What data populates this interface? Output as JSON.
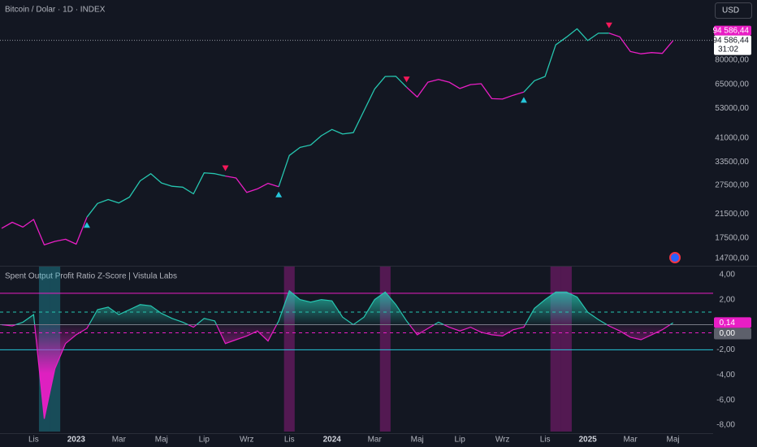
{
  "chart_data": [
    {
      "type": "line",
      "title": "Bitcoin / Dolar · 1D · INDEX",
      "log_scale": true,
      "grid": false,
      "currency": "USD",
      "countdown": "31:02",
      "current": {
        "value": 94586.44,
        "label": "94 586,44"
      },
      "current_color": "#e91ec5",
      "ylim": [
        13800,
        133500
      ],
      "yticks": [
        {
          "value": 80000,
          "label": "80000,00"
        },
        {
          "value": 65000,
          "label": "65000,00"
        },
        {
          "value": 53000,
          "label": "53000,00"
        },
        {
          "value": 41000,
          "label": "41000,00"
        },
        {
          "value": 33500,
          "label": "33500,00"
        },
        {
          "value": 27500,
          "label": "27500,00"
        },
        {
          "value": 21500,
          "label": "21500,00"
        },
        {
          "value": 17500,
          "label": "17500,00"
        },
        {
          "value": 14700,
          "label": "14700,00"
        }
      ],
      "series": [
        {
          "color": "#26c6b0",
          "signal_color": "#26c6da",
          "values": [
            null,
            null,
            null,
            null,
            null,
            null,
            null,
            null,
            20900,
            23500,
            24300,
            23600,
            24800,
            28500,
            30300,
            28000,
            27200,
            27000,
            25500,
            30500,
            30300,
            29700,
            null,
            null,
            null,
            null,
            27100,
            35400,
            37900,
            38700,
            41900,
            44200,
            42500,
            43000,
            51800,
            62400,
            69500,
            69600,
            63400,
            null,
            null,
            null,
            null,
            null,
            null,
            null,
            null,
            null,
            null,
            60800,
            67000,
            69500,
            91000,
            97200,
            104400,
            94400,
            100500,
            100600,
            null,
            null,
            null,
            null,
            null,
            null,
            null,
            null,
            null
          ]
        },
        {
          "color": "#e91ec5",
          "signal_color": "#f7185a",
          "values": [
            19000,
            20000,
            19200,
            20500,
            16500,
            17000,
            17300,
            16600,
            20900,
            null,
            null,
            null,
            null,
            null,
            null,
            null,
            null,
            null,
            null,
            null,
            null,
            29700,
            29200,
            25800,
            26600,
            27900,
            27100,
            null,
            null,
            null,
            null,
            null,
            null,
            null,
            null,
            null,
            null,
            null,
            63400,
            58300,
            66200,
            67700,
            66200,
            62700,
            64800,
            65300,
            57500,
            57300,
            59200,
            60800,
            null,
            null,
            null,
            null,
            null,
            null,
            null,
            100600,
            97500,
            86000,
            84300,
            85200,
            84600,
            94300,
            null,
            null,
            null
          ]
        }
      ]
    },
    {
      "type": "area",
      "title": "Spent Output Profit Ratio Z-Score | Vistula Labs",
      "categories": [
        null,
        null,
        null,
        "Lis",
        null,
        null,
        null,
        "2023",
        null,
        null,
        null,
        "Mar",
        null,
        null,
        null,
        "Maj",
        null,
        null,
        null,
        "Lip",
        null,
        null,
        null,
        "Wrz",
        null,
        null,
        null,
        "Lis",
        null,
        null,
        null,
        "2024",
        null,
        null,
        null,
        "Mar",
        null,
        null,
        null,
        "Maj",
        null,
        null,
        null,
        "Lip",
        null,
        null,
        null,
        "Wrz",
        null,
        null,
        null,
        "Lis",
        null,
        null,
        null,
        "2025",
        null,
        null,
        null,
        "Mar",
        null,
        null,
        null,
        "Maj",
        null,
        null,
        null
      ],
      "values": [
        0,
        -0.1,
        0.2,
        0.8,
        -7.5,
        -3.5,
        -1.5,
        -0.8,
        -0.3,
        1.2,
        1.4,
        0.8,
        1.2,
        1.6,
        1.5,
        0.9,
        0.5,
        0.2,
        -0.2,
        0.5,
        0.3,
        -1.5,
        -1.2,
        -0.9,
        -0.5,
        -1.3,
        0.3,
        2.7,
        2.0,
        1.8,
        2.0,
        1.9,
        0.6,
        0,
        0.6,
        2.0,
        2.6,
        1.6,
        0.3,
        -0.8,
        -0.3,
        0.2,
        -0.2,
        -0.5,
        -0.2,
        -0.6,
        -0.8,
        -0.9,
        -0.4,
        -0.2,
        1.3,
        2.0,
        2.6,
        2.6,
        2.2,
        1.0,
        0.4,
        -0.1,
        -0.5,
        -1.0,
        -1.2,
        -0.8,
        -0.4,
        0.14,
        null,
        null,
        null
      ],
      "color_above": "#26c6b0",
      "color_below": "#e91ec5",
      "last_label": {
        "value": 0.14,
        "label": "0,14"
      },
      "ylim": [
        -8.45,
        4.5
      ],
      "yticks": [
        {
          "value": 4,
          "label": "4,00"
        },
        {
          "value": 2,
          "label": "2,00"
        },
        {
          "value": 0,
          "label": "0,00"
        },
        {
          "value": -2,
          "label": "-2,00"
        },
        {
          "value": -4,
          "label": "-4,00"
        },
        {
          "value": -6,
          "label": "-6,00"
        },
        {
          "value": -8,
          "label": "-8,00"
        }
      ],
      "levels": [
        {
          "value": 2.5,
          "color": "#e91ec5",
          "style": "solid"
        },
        {
          "value": 1,
          "color": "#26c6b0",
          "style": "dashed"
        },
        {
          "value": 0,
          "color": "#787b86",
          "style": "solid"
        },
        {
          "value": -0.65,
          "color": "#e91ec5",
          "style": "dashed"
        },
        {
          "value": -2,
          "color": "#26c6da",
          "style": "solid"
        }
      ]
    }
  ]
}
